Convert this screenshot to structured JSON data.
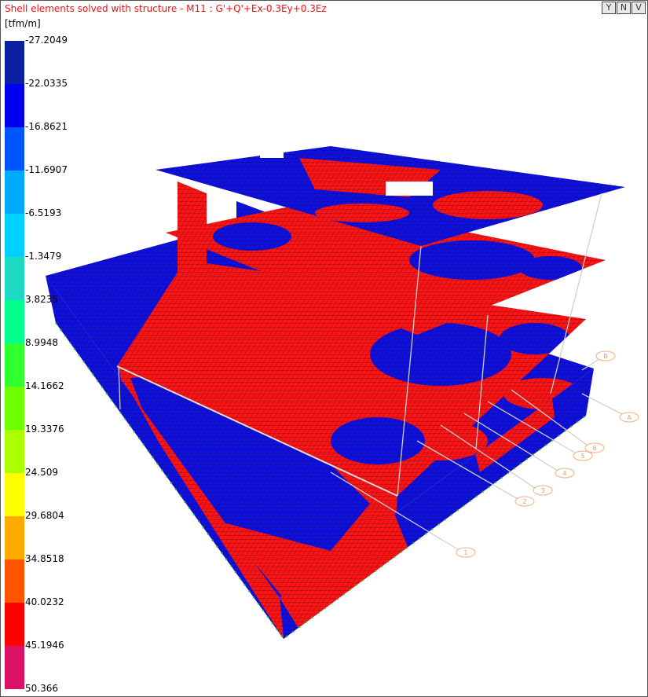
{
  "title": "Shell elements solved with structure - M11 : G'+Q'+Ex-0.3Ey+0.3Ez",
  "unit": "[tfm/m]",
  "toolbar": [
    {
      "name": "filter-button",
      "icon": "filter-icon",
      "label": "Y"
    },
    {
      "name": "n-button",
      "icon": "n-icon",
      "label": "N"
    },
    {
      "name": "v-button",
      "icon": "v-icon",
      "label": "V"
    }
  ],
  "legend": {
    "labels": [
      "-27.2049",
      "-22.0335",
      "-16.8621",
      "-11.6907",
      "-6.5193",
      "-1.3479",
      "3.8235",
      "8.9948",
      "14.1662",
      "19.3376",
      "24.509",
      "29.6804",
      "34.8518",
      "40.0232",
      "45.1946",
      "50.366"
    ],
    "colors": [
      "#0c1fa0",
      "#0000f0",
      "#0055ff",
      "#00aaff",
      "#00d0ff",
      "#1ed9c4",
      "#00ff8c",
      "#30ff30",
      "#6eff00",
      "#aaff00",
      "#ffff00",
      "#ffaa00",
      "#ff5500",
      "#ff0000",
      "#dd1166"
    ]
  },
  "model": {
    "mesh_colors": {
      "negative": "#1010e0",
      "positive": "#ff1414",
      "line": "#300818",
      "support": "#22cc22",
      "gridline": "#c8c8c8",
      "bubble": "#f5b080"
    },
    "grid_labels": [
      "1",
      "2",
      "3",
      "4",
      "5",
      "6",
      "A",
      "B"
    ]
  }
}
